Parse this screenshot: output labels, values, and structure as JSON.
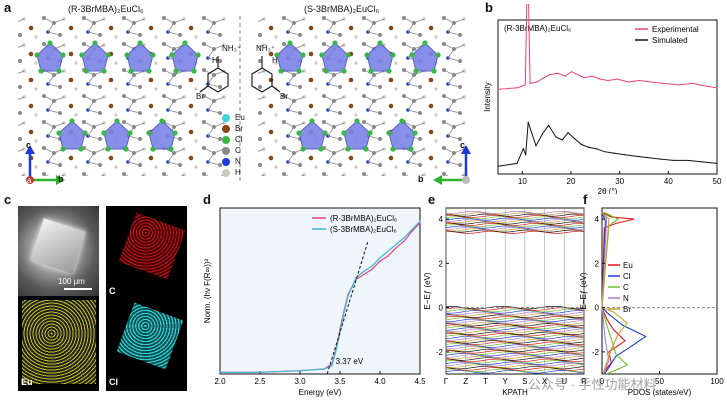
{
  "panels": {
    "a": {
      "label": "a",
      "left_title": "(R-3BrMBA)₂EuCl₆",
      "right_title": "(S-3BrMBA)₂EuCl₆",
      "left_axis": {
        "up": "c",
        "right": "b",
        "origin": "a"
      },
      "right_axis": {
        "up": "c",
        "left": "b"
      },
      "legend": [
        {
          "name": "Eu",
          "color": "#3fd0d8"
        },
        {
          "name": "Br",
          "color": "#8b4513"
        },
        {
          "name": "Cl",
          "color": "#39b54a"
        },
        {
          "name": "C",
          "color": "#8a8a8a"
        },
        {
          "name": "N",
          "color": "#1e3ad6"
        },
        {
          "name": "H",
          "color": "#cfc9bd"
        }
      ],
      "molecule_labels": {
        "nh3": "NH₃⁺",
        "h": "H",
        "br": "Br"
      }
    },
    "b": {
      "label": "b",
      "title": "(R-3BrMBA)₂EuCl₆",
      "ylabel": "Intensity",
      "xlabel": "2θ (°)",
      "legend": [
        "Experimental",
        "Simulated"
      ]
    },
    "c": {
      "label": "c",
      "scale": "100 μm",
      "maps": [
        "C",
        "Eu",
        "Cl"
      ]
    },
    "d": {
      "label": "d",
      "ylabel": "Norm. (hν F(R∞))²",
      "xlabel": "Energy (eV)",
      "legend": [
        "(R-3BrMBA)₂EuCl₆",
        "(S-3BrMBA)₂EuCl₆"
      ],
      "annotation": "3.37 eV"
    },
    "e": {
      "label": "e",
      "ylabel": "E−Eƒ (eV)",
      "xlabel": "KPATH",
      "kpoints": [
        "Γ",
        "Z",
        "T",
        "Y",
        "S",
        "X",
        "U",
        "R"
      ]
    },
    "f": {
      "label": "f",
      "ylabel": "E−Eƒ (eV)",
      "xlabel": "PDOS (states/eV)",
      "legend": [
        "Eu",
        "Cl",
        "C",
        "N",
        "Br"
      ]
    }
  },
  "watermark": "公众号 · 手性功能材料",
  "chart_data": [
    {
      "id": "b",
      "type": "line",
      "title": "(R-3BrMBA)₂EuCl₆",
      "xlabel": "2θ (°)",
      "ylabel": "Intensity",
      "xlim": [
        5,
        50
      ],
      "xticks": [
        10,
        20,
        30,
        40,
        50
      ],
      "series": [
        {
          "name": "Experimental",
          "color": "#e0457b",
          "offset": 0.55,
          "x": [
            5,
            9,
            10.6,
            11.1,
            11.6,
            13,
            14.5,
            15.6,
            17.2,
            18.9,
            20.1,
            21.4,
            22.7,
            24.3,
            26,
            27.6,
            29.5,
            31.8,
            34,
            36.5,
            39,
            42,
            45,
            48,
            50
          ],
          "y": [
            0,
            0.01,
            0.03,
            0.9,
            0.04,
            0.05,
            0.08,
            0.1,
            0.11,
            0.09,
            0.12,
            0.1,
            0.08,
            0.09,
            0.07,
            0.06,
            0.07,
            0.05,
            0.06,
            0.05,
            0.04,
            0.03,
            0.04,
            0.02,
            0.01
          ]
        },
        {
          "name": "Simulated",
          "color": "#111111",
          "offset": 0.05,
          "x": [
            5,
            8.9,
            10.2,
            10.7,
            11.2,
            12.8,
            14.1,
            15.4,
            16.9,
            18.2,
            19.4,
            20.7,
            22.1,
            23.6,
            25.2,
            26.9,
            28.8,
            30.9,
            33.1,
            35.6,
            38.2,
            41,
            44,
            47,
            50
          ],
          "y": [
            0,
            0.02,
            0.12,
            0.08,
            0.3,
            0.14,
            0.22,
            0.28,
            0.2,
            0.18,
            0.23,
            0.19,
            0.15,
            0.13,
            0.12,
            0.1,
            0.09,
            0.08,
            0.07,
            0.06,
            0.05,
            0.04,
            0.04,
            0.03,
            0.02
          ]
        }
      ]
    },
    {
      "id": "d",
      "type": "line",
      "xlabel": "Energy (eV)",
      "ylabel": "Norm. (hν F(R∞))²",
      "xlim": [
        2.0,
        4.5
      ],
      "xticks": [
        2.0,
        2.5,
        3.0,
        3.5,
        4.0,
        4.5
      ],
      "ylim": [
        0,
        1
      ],
      "series": [
        {
          "name": "(R-3BrMBA)₂EuCl₆",
          "color": "#e0457b",
          "x": [
            2.0,
            2.5,
            3.0,
            3.3,
            3.4,
            3.45,
            3.5,
            3.55,
            3.6,
            3.7,
            3.8,
            3.9,
            4.0,
            4.1,
            4.2,
            4.3,
            4.4,
            4.5
          ],
          "y": [
            0.01,
            0.01,
            0.02,
            0.03,
            0.06,
            0.15,
            0.27,
            0.38,
            0.48,
            0.57,
            0.6,
            0.63,
            0.68,
            0.71,
            0.76,
            0.8,
            0.86,
            0.91
          ]
        },
        {
          "name": "(S-3BrMBA)₂EuCl₆",
          "color": "#3fb5dd",
          "x": [
            2.0,
            2.5,
            3.0,
            3.3,
            3.4,
            3.45,
            3.5,
            3.55,
            3.6,
            3.7,
            3.8,
            3.9,
            4.0,
            4.1,
            4.2,
            4.3,
            4.4,
            4.5
          ],
          "y": [
            0.01,
            0.01,
            0.02,
            0.03,
            0.05,
            0.14,
            0.25,
            0.37,
            0.47,
            0.58,
            0.62,
            0.65,
            0.7,
            0.74,
            0.78,
            0.82,
            0.87,
            0.92
          ]
        }
      ],
      "annotation": {
        "text": "3.37 eV",
        "x": 3.37
      }
    },
    {
      "id": "e",
      "type": "line",
      "xlabel": "KPATH",
      "ylabel": "E−Eƒ (eV)",
      "ylim": [
        -3,
        4.5
      ],
      "yticks": [
        -2,
        0,
        2,
        4
      ],
      "categories": [
        "Γ",
        "Z",
        "T",
        "Y",
        "S",
        "X",
        "U",
        "R"
      ],
      "bands": {
        "valence_range": [
          -2.9,
          0
        ],
        "conduction_range": [
          3.4,
          4.3
        ],
        "gap": 3.37
      }
    },
    {
      "id": "f",
      "type": "line",
      "xlabel": "PDOS (states/eV)",
      "ylabel": "E−Eƒ (eV)",
      "ylim": [
        -3,
        4.5
      ],
      "yticks": [
        -2,
        0,
        2,
        4
      ],
      "xlim": [
        0,
        100
      ],
      "xticks": [
        0,
        50,
        100
      ],
      "series": [
        {
          "name": "Eu",
          "color": "#e31a1c"
        },
        {
          "name": "Cl",
          "color": "#1f3fd6"
        },
        {
          "name": "C",
          "color": "#6fbf2e"
        },
        {
          "name": "N",
          "color": "#b07ad0"
        },
        {
          "name": "Br",
          "color": "#c9a227"
        }
      ]
    }
  ]
}
